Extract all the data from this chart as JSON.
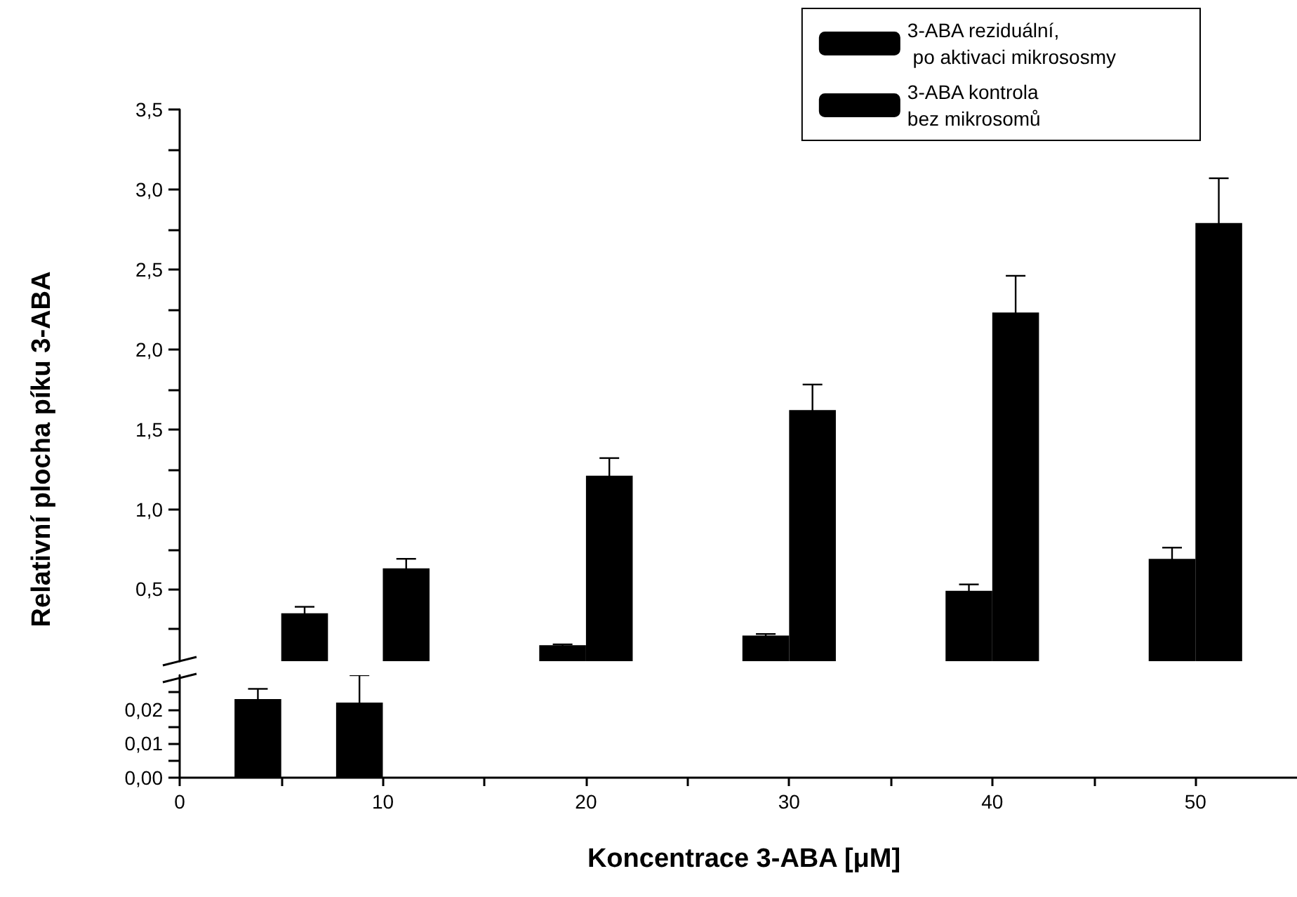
{
  "chart_data": [
    {
      "type": "bar",
      "ylabel": "Relativní plocha píku 3-ABA",
      "x": [
        5,
        10,
        20,
        30,
        40,
        50
      ],
      "series": [
        {
          "name": "3-ABA reziduální,\n po aktivaci mikrososmy",
          "color": "#000000",
          "values": [
            null,
            null,
            0.15,
            0.21,
            0.49,
            0.69
          ],
          "errors": [
            null,
            null,
            0.005,
            0.01,
            0.04,
            0.07
          ]
        },
        {
          "name": "3-ABA kontrola\nbez mikrosomů",
          "color": "#000000",
          "values": [
            0.35,
            0.63,
            1.21,
            1.62,
            2.23,
            2.79
          ],
          "errors": [
            0.04,
            0.06,
            0.11,
            0.16,
            0.23,
            0.28
          ]
        }
      ],
      "xlim": [
        0,
        55
      ],
      "ylim": [
        0.05,
        3.5
      ],
      "yticks": [
        {
          "value": 0.25,
          "label": null
        },
        {
          "value": 0.5,
          "label": "0,5"
        },
        {
          "value": 0.75,
          "label": null
        },
        {
          "value": 1,
          "label": "1,0"
        },
        {
          "value": 1.25,
          "label": null
        },
        {
          "value": 1.5,
          "label": "1,5"
        },
        {
          "value": 1.75,
          "label": null
        },
        {
          "value": 2,
          "label": "2,0"
        },
        {
          "value": 2.25,
          "label": null
        },
        {
          "value": 2.5,
          "label": "2,5"
        },
        {
          "value": 2.75,
          "label": null
        },
        {
          "value": 3,
          "label": "3,0"
        },
        {
          "value": 3.25,
          "label": null
        },
        {
          "value": 3.5,
          "label": "3,5"
        }
      ],
      "tick_labels": "y",
      "legend": "top right"
    },
    {
      "type": "bar",
      "xlabel": "Koncentrace 3-ABA [μM]",
      "x": [
        5,
        10
      ],
      "series": [
        {
          "color": "#000000",
          "values": [
            0.023,
            0.022
          ],
          "errors": [
            0.003,
            0.008
          ]
        },
        {
          "color": "#000000",
          "values": [
            null,
            null
          ]
        }
      ],
      "xlim": [
        0,
        55
      ],
      "ylim": [
        0,
        0.03
      ],
      "xticks": [
        0,
        {
          "value": 5,
          "label": null
        },
        10,
        {
          "value": 15,
          "label": null
        },
        20,
        {
          "value": 25,
          "label": null
        },
        30,
        {
          "value": 35,
          "label": null
        },
        40,
        {
          "value": 45,
          "label": null
        },
        50
      ],
      "yticks": [
        {
          "value": 0,
          "label": "0,00"
        },
        {
          "value": 0.005,
          "label": null
        },
        {
          "value": 0.01,
          "label": "0,01"
        },
        {
          "value": 0.015,
          "label": null
        },
        {
          "value": 0.02,
          "label": "0,02"
        },
        {
          "value": 0.025,
          "label": null
        }
      ]
    }
  ]
}
